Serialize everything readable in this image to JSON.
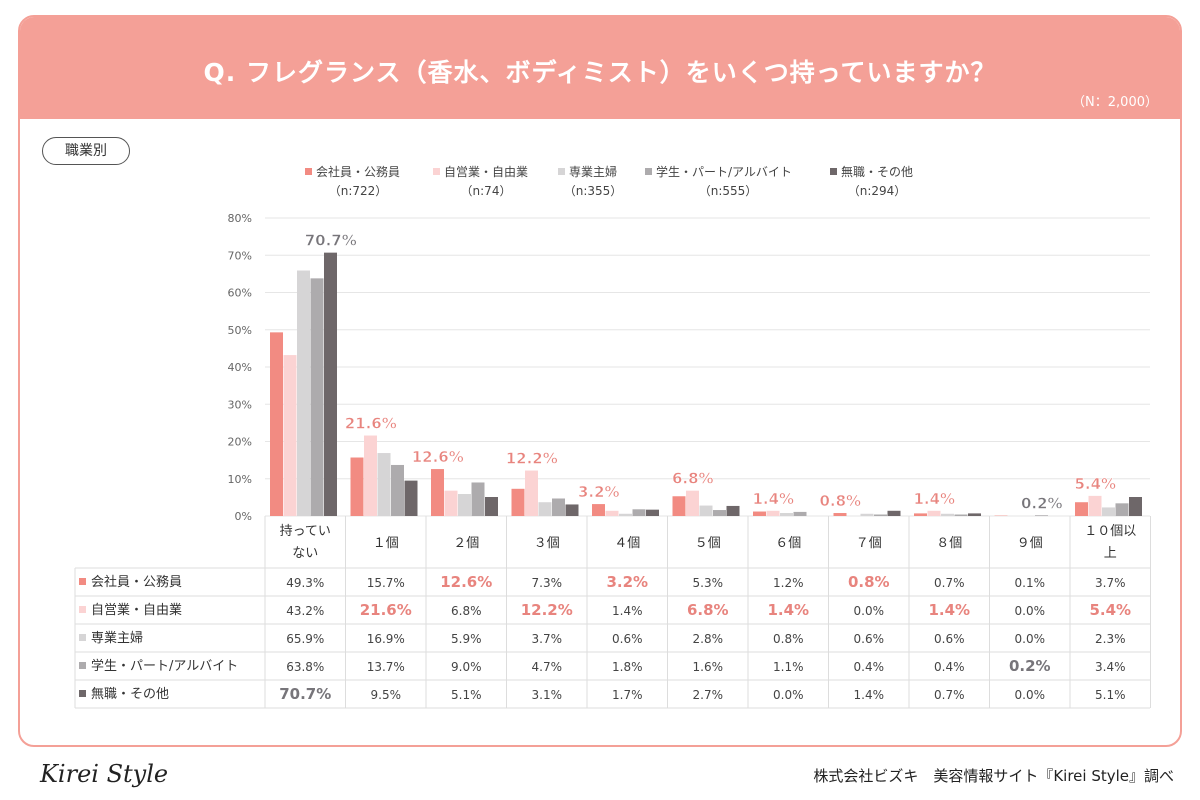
{
  "header": {
    "title": "Q. フレグランス（香水、ボディミスト）をいくつ持っていますか？",
    "sample": "（N：2,000）"
  },
  "segment_label": "職業別",
  "footer": {
    "logo": "Kirei Style",
    "credit": "株式会社ビズキ　美容情報サイト『Kirei Style』調べ"
  },
  "chart_data": {
    "type": "bar",
    "ylim": [
      0,
      80
    ],
    "yticks": [
      "0%",
      "10%",
      "20%",
      "30%",
      "40%",
      "50%",
      "60%",
      "70%",
      "80%"
    ],
    "categories": [
      [
        "持ってい",
        "ない"
      ],
      [
        "１個"
      ],
      [
        "２個"
      ],
      [
        "３個"
      ],
      [
        "４個"
      ],
      [
        "５個"
      ],
      [
        "６個"
      ],
      [
        "７個"
      ],
      [
        "８個"
      ],
      [
        "９個"
      ],
      [
        "１０個以",
        "上"
      ]
    ],
    "series": [
      {
        "name": "会社員・公務員",
        "n": "（n:722）",
        "color": "#f28b82",
        "values": [
          49.3,
          15.7,
          12.6,
          7.3,
          3.2,
          5.3,
          1.2,
          0.8,
          0.7,
          0.1,
          3.7
        ]
      },
      {
        "name": "自営業・自由業",
        "n": "（n:74）",
        "color": "#fbd3d3",
        "values": [
          43.2,
          21.6,
          6.8,
          12.2,
          1.4,
          6.8,
          1.4,
          0.0,
          1.4,
          0.0,
          5.4
        ]
      },
      {
        "name": "専業主婦",
        "n": "（n:355）",
        "color": "#d6d5d6",
        "values": [
          65.9,
          16.9,
          5.9,
          3.7,
          0.6,
          2.8,
          0.8,
          0.6,
          0.6,
          0.0,
          2.3
        ]
      },
      {
        "name": "学生・パート/アルバイト",
        "n": "（n:555）",
        "color": "#adabad",
        "values": [
          63.8,
          13.7,
          9.0,
          4.7,
          1.8,
          1.6,
          1.1,
          0.4,
          0.4,
          0.2,
          3.4
        ]
      },
      {
        "name": "無職・その他",
        "n": "（n:294）",
        "color": "#6e6769",
        "values": [
          70.7,
          9.5,
          5.1,
          3.1,
          1.7,
          2.7,
          0.0,
          1.4,
          0.7,
          0.0,
          5.1
        ]
      }
    ],
    "highlights": [
      [
        4,
        0
      ],
      [
        1,
        1
      ],
      [
        0,
        2
      ],
      [
        1,
        3
      ],
      [
        0,
        4
      ],
      [
        1,
        5
      ],
      [
        1,
        6
      ],
      [
        0,
        7
      ],
      [
        1,
        8
      ],
      [
        3,
        9
      ],
      [
        1,
        10
      ]
    ],
    "highlight_colors": {
      "pink": "#e8847e",
      "gray": "#77757a"
    }
  }
}
